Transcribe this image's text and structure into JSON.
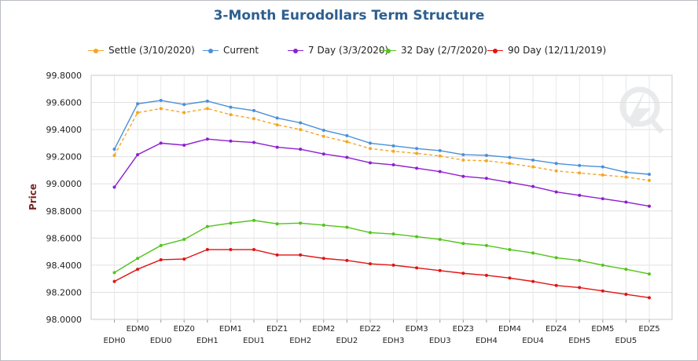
{
  "chart_data": {
    "type": "line",
    "title": "3-Month Eurodollars Term Structure",
    "ylabel": "Price",
    "xlabel": "",
    "ylim": [
      98.0,
      99.8
    ],
    "yticks": [
      "99.8000",
      "99.6000",
      "99.4000",
      "99.2000",
      "99.0000",
      "98.8000",
      "98.6000",
      "98.4000",
      "98.2000",
      "98.0000"
    ],
    "categories": [
      "EDH0",
      "EDM0",
      "EDU0",
      "EDZ0",
      "EDH1",
      "EDM1",
      "EDU1",
      "EDZ1",
      "EDH2",
      "EDM2",
      "EDU2",
      "EDZ2",
      "EDH3",
      "EDM3",
      "EDU3",
      "EDZ3",
      "EDH4",
      "EDM4",
      "EDU4",
      "EDZ4",
      "EDH5",
      "EDM5",
      "EDU5",
      "EDZ5"
    ],
    "grid": true,
    "legend_position": "top",
    "series": [
      {
        "name": "Settle (3/10/2020)",
        "color": "#f5a623",
        "dashed": true,
        "values": [
          99.21,
          99.525,
          99.555,
          99.525,
          99.555,
          99.51,
          99.48,
          99.435,
          99.4,
          99.35,
          99.31,
          99.26,
          99.24,
          99.225,
          99.205,
          99.175,
          99.17,
          99.15,
          99.125,
          99.095,
          99.08,
          99.065,
          99.05,
          99.025
        ]
      },
      {
        "name": "Current",
        "color": "#4a90d9",
        "dashed": false,
        "values": [
          99.255,
          99.59,
          99.615,
          99.585,
          99.61,
          99.565,
          99.54,
          99.485,
          99.45,
          99.395,
          99.355,
          99.3,
          99.28,
          99.26,
          99.245,
          99.215,
          99.21,
          99.195,
          99.175,
          99.15,
          99.135,
          99.125,
          99.085,
          99.07
        ]
      },
      {
        "name": "7 Day (3/3/2020)",
        "color": "#8e1fd1",
        "dashed": false,
        "values": [
          98.975,
          99.215,
          99.3,
          99.285,
          99.33,
          99.315,
          99.305,
          99.27,
          99.255,
          99.22,
          99.195,
          99.155,
          99.14,
          99.115,
          99.09,
          99.055,
          99.04,
          99.01,
          98.98,
          98.94,
          98.915,
          98.89,
          98.865,
          98.835
        ]
      },
      {
        "name": "32 Day (2/7/2020)",
        "color": "#52c41a",
        "dashed": false,
        "values": [
          98.345,
          98.45,
          98.545,
          98.59,
          98.685,
          98.71,
          98.73,
          98.705,
          98.71,
          98.695,
          98.68,
          98.64,
          98.63,
          98.61,
          98.59,
          98.56,
          98.545,
          98.515,
          98.49,
          98.455,
          98.435,
          98.4,
          98.37,
          98.335
        ]
      },
      {
        "name": "90 Day (12/11/2019)",
        "color": "#e01414",
        "dashed": false,
        "values": [
          98.28,
          98.37,
          98.44,
          98.445,
          98.515,
          98.515,
          98.515,
          98.475,
          98.475,
          98.45,
          98.435,
          98.41,
          98.4,
          98.38,
          98.36,
          98.34,
          98.325,
          98.305,
          98.28,
          98.25,
          98.235,
          98.21,
          98.185,
          98.16
        ]
      }
    ]
  }
}
